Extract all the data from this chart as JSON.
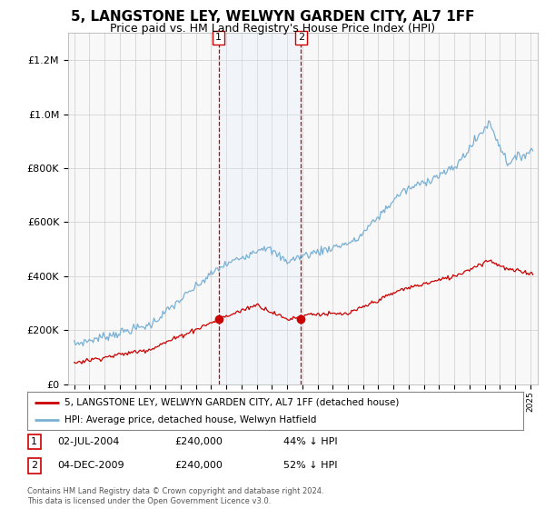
{
  "title": "5, LANGSTONE LEY, WELWYN GARDEN CITY, AL7 1FF",
  "subtitle": "Price paid vs. HM Land Registry's House Price Index (HPI)",
  "title_fontsize": 11,
  "subtitle_fontsize": 9,
  "background_color": "#ffffff",
  "plot_bg_color": "#f8f8f8",
  "grid_color": "#cccccc",
  "sale1_date_num": 2004.5,
  "sale2_date_num": 2009.92,
  "sale1_price": 240000,
  "sale2_price": 240000,
  "legend_line1": "5, LANGSTONE LEY, WELWYN GARDEN CITY, AL7 1FF (detached house)",
  "legend_line2": "HPI: Average price, detached house, Welwyn Hatfield",
  "footnote": "Contains HM Land Registry data © Crown copyright and database right 2024.\nThis data is licensed under the Open Government Licence v3.0.",
  "red_color": "#cc0000",
  "blue_color": "#7ab0d4",
  "shade_color": "#ddeeff",
  "ylim_min": 0,
  "ylim_max": 1300000,
  "xlim_min": 1994.6,
  "xlim_max": 2025.5
}
